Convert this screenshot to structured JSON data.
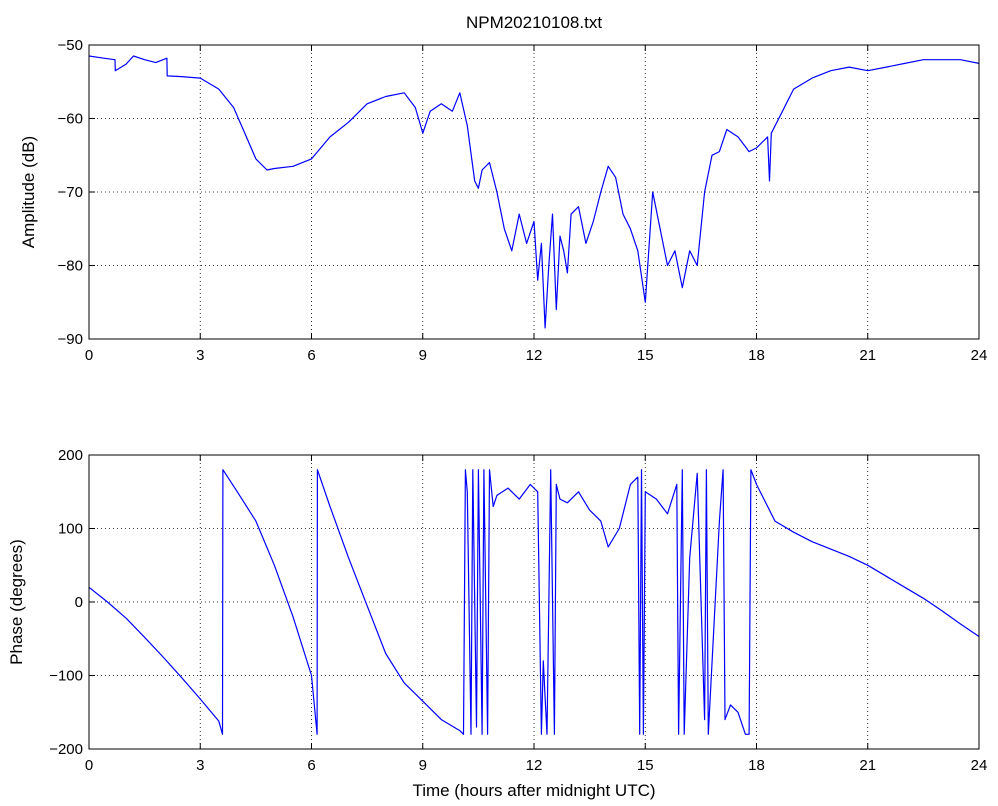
{
  "chart_data": [
    {
      "type": "line",
      "title": "NPM20210108.txt",
      "xlabel": "",
      "ylabel": "Amplitude (dB)",
      "xlim": [
        0,
        24
      ],
      "ylim": [
        -90,
        -50
      ],
      "xticks": [
        0,
        3,
        6,
        9,
        12,
        15,
        18,
        21,
        24
      ],
      "yticks": [
        -90,
        -80,
        -70,
        -60,
        -50
      ],
      "xtick_labels": [
        "0",
        "3",
        "6",
        "9",
        "12",
        "15",
        "18",
        "21",
        "24"
      ],
      "ytick_labels": [
        "−90",
        "−80",
        "−70",
        "−60",
        "−50"
      ],
      "grid": true,
      "line_color": "#0000ff",
      "series": [
        {
          "x": [
            0,
            0.4,
            0.7,
            0.71,
            1.0,
            1.2,
            1.5,
            1.8,
            2.1,
            2.11,
            2.5,
            3.0,
            3.5,
            3.9,
            4.2,
            4.5,
            4.8,
            5.0,
            5.5,
            6.0,
            6.5,
            7.0,
            7.5,
            8.0,
            8.5,
            8.8,
            9.0,
            9.2,
            9.5,
            9.8,
            10.0,
            10.2,
            10.4,
            10.5,
            10.6,
            10.8,
            11.0,
            11.2,
            11.4,
            11.6,
            11.8,
            12.0,
            12.1,
            12.2,
            12.3,
            12.4,
            12.5,
            12.6,
            12.7,
            12.8,
            12.9,
            13.0,
            13.2,
            13.4,
            13.6,
            13.8,
            14.0,
            14.2,
            14.4,
            14.6,
            14.8,
            15.0,
            15.2,
            15.4,
            15.6,
            15.8,
            16.0,
            16.2,
            16.4,
            16.6,
            16.8,
            17.0,
            17.2,
            17.5,
            17.8,
            18.0,
            18.3,
            18.35,
            18.4,
            18.7,
            19.0,
            19.5,
            20.0,
            20.5,
            21.0,
            21.5,
            22.0,
            22.5,
            23.0,
            23.5,
            24.0
          ],
          "y": [
            -51.5,
            -51.8,
            -52.0,
            -53.5,
            -52.6,
            -51.5,
            -52.0,
            -52.4,
            -51.8,
            -54.2,
            -54.3,
            -54.5,
            -56.0,
            -58.5,
            -62.0,
            -65.5,
            -67.0,
            -66.8,
            -66.5,
            -65.5,
            -62.5,
            -60.5,
            -58.0,
            -57.0,
            -56.5,
            -58.5,
            -62.0,
            -59.0,
            -58.0,
            -59.0,
            -56.5,
            -61.0,
            -68.5,
            -69.5,
            -67.0,
            -66.0,
            -70.0,
            -75.0,
            -78.0,
            -73.0,
            -77.0,
            -74.0,
            -82.0,
            -77.0,
            -88.5,
            -80.0,
            -73.0,
            -86.0,
            -76.0,
            -78.0,
            -81.0,
            -73.0,
            -72.0,
            -77.0,
            -74.0,
            -70.0,
            -66.5,
            -68.0,
            -73.0,
            -75.0,
            -78.0,
            -85.0,
            -70.0,
            -75.0,
            -80.0,
            -78.0,
            -83.0,
            -78.0,
            -80.0,
            -70.0,
            -65.0,
            -64.5,
            -61.5,
            -62.5,
            -64.5,
            -64.0,
            -62.5,
            -68.5,
            -62.0,
            -59.0,
            -56.0,
            -54.5,
            -53.5,
            -53.0,
            -53.5,
            -53.0,
            -52.5,
            -52.0,
            -52.0,
            -52.0,
            -52.5
          ]
        }
      ]
    },
    {
      "type": "line",
      "title": "",
      "xlabel": "Time (hours after midnight UTC)",
      "ylabel": "Phase (degrees)",
      "xlim": [
        0,
        24
      ],
      "ylim": [
        -200,
        200
      ],
      "xticks": [
        0,
        3,
        6,
        9,
        12,
        15,
        18,
        21,
        24
      ],
      "yticks": [
        -200,
        -100,
        0,
        100,
        200
      ],
      "xtick_labels": [
        "0",
        "3",
        "6",
        "9",
        "12",
        "15",
        "18",
        "21",
        "24"
      ],
      "ytick_labels": [
        "−200",
        "−100",
        "0",
        "100",
        "200"
      ],
      "grid": true,
      "line_color": "#0000ff",
      "series": [
        {
          "x": [
            0,
            0.5,
            1.0,
            1.5,
            2.0,
            2.5,
            3.0,
            3.5,
            3.6,
            3.61,
            4.0,
            4.5,
            5.0,
            5.5,
            6.0,
            6.15,
            6.16,
            6.5,
            7.0,
            7.5,
            8.0,
            8.5,
            9.0,
            9.5,
            10.0,
            10.1,
            10.15,
            10.2,
            10.3,
            10.35,
            10.45,
            10.5,
            10.6,
            10.65,
            10.75,
            10.8,
            10.9,
            11.0,
            11.3,
            11.6,
            11.9,
            12.1,
            12.2,
            12.25,
            12.3,
            12.35,
            12.45,
            12.55,
            12.6,
            12.65,
            12.7,
            12.9,
            13.2,
            13.5,
            13.8,
            14.0,
            14.3,
            14.6,
            14.8,
            14.85,
            14.9,
            14.95,
            15.0,
            15.3,
            15.6,
            15.85,
            15.9,
            16.0,
            16.05,
            16.2,
            16.4,
            16.6,
            16.65,
            16.7,
            17.0,
            17.1,
            17.15,
            17.3,
            17.5,
            17.7,
            17.8,
            17.85,
            18.0,
            18.5,
            19.0,
            19.5,
            20.0,
            20.5,
            21.0,
            21.5,
            22.0,
            22.5,
            23.0,
            23.5,
            24.0
          ],
          "y": [
            20,
            0,
            -22,
            -48,
            -75,
            -103,
            -132,
            -162,
            -180,
            180,
            150,
            110,
            50,
            -20,
            -100,
            -180,
            180,
            130,
            60,
            -5,
            -70,
            -110,
            -135,
            -160,
            -175,
            -180,
            180,
            150,
            -180,
            180,
            -170,
            180,
            -180,
            180,
            -180,
            180,
            130,
            145,
            155,
            140,
            160,
            150,
            -180,
            -80,
            -130,
            -180,
            180,
            -180,
            160,
            150,
            140,
            135,
            150,
            125,
            110,
            75,
            100,
            160,
            170,
            -180,
            180,
            -180,
            150,
            140,
            120,
            160,
            -180,
            180,
            -180,
            60,
            175,
            -160,
            180,
            -180,
            110,
            180,
            -160,
            -140,
            -150,
            -180,
            -180,
            180,
            160,
            110,
            95,
            82,
            72,
            62,
            50,
            35,
            20,
            5,
            -12,
            -30,
            -47
          ]
        }
      ]
    }
  ]
}
